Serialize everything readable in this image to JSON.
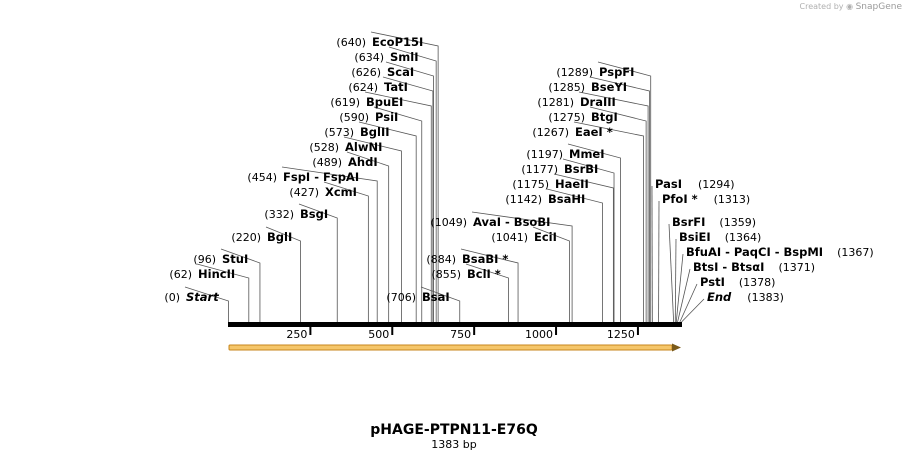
{
  "credit": {
    "prefix": "Created by",
    "brand": "SnapGene"
  },
  "plasmid": {
    "name": "pHAGE-PTPN11-E76Q",
    "length_text": "1383 bp",
    "length": 1383
  },
  "colors": {
    "feature_fill": "#f5c66a",
    "feature_stroke": "#c7861c",
    "backbone": "#000000",
    "arrow_head": "#7a5a1a"
  },
  "axis": {
    "ticks": [
      250,
      500,
      750,
      1000,
      1250
    ]
  },
  "sites": [
    {
      "name": "Start",
      "pos": 0,
      "pos_text": "(0)",
      "special": true
    },
    {
      "name": "HincII",
      "pos": 62,
      "pos_text": "(62)"
    },
    {
      "name": "StuI",
      "pos": 96,
      "pos_text": "(96)"
    },
    {
      "name": "BglI",
      "pos": 220,
      "pos_text": "(220)"
    },
    {
      "name": "BsgI",
      "pos": 332,
      "pos_text": "(332)"
    },
    {
      "name": "XcmI",
      "pos": 427,
      "pos_text": "(427)"
    },
    {
      "name": "FspI  -  FspAI",
      "pos": 454,
      "pos_text": "(454)"
    },
    {
      "name": "AhdI",
      "pos": 489,
      "pos_text": "(489)"
    },
    {
      "name": "AlwNI",
      "pos": 528,
      "pos_text": "(528)"
    },
    {
      "name": "BglII",
      "pos": 573,
      "pos_text": "(573)"
    },
    {
      "name": "PsiI",
      "pos": 590,
      "pos_text": "(590)"
    },
    {
      "name": "BpuEI",
      "pos": 619,
      "pos_text": "(619)"
    },
    {
      "name": "TatI",
      "pos": 624,
      "pos_text": "(624)"
    },
    {
      "name": "ScaI",
      "pos": 626,
      "pos_text": "(626)"
    },
    {
      "name": "SmlI",
      "pos": 634,
      "pos_text": "(634)"
    },
    {
      "name": "EcoP15I",
      "pos": 640,
      "pos_text": "(640)"
    },
    {
      "name": "BsaI",
      "pos": 706,
      "pos_text": "(706)"
    },
    {
      "name": "BclI *",
      "pos": 855,
      "pos_text": "(855)"
    },
    {
      "name": "BsaBI *",
      "pos": 884,
      "pos_text": "(884)"
    },
    {
      "name": "EciI",
      "pos": 1041,
      "pos_text": "(1041)"
    },
    {
      "name": "AvaI  -  BsoBI",
      "pos": 1049,
      "pos_text": "(1049)"
    },
    {
      "name": "BsaHI",
      "pos": 1142,
      "pos_text": "(1142)"
    },
    {
      "name": "HaeII",
      "pos": 1175,
      "pos_text": "(1175)"
    },
    {
      "name": "BsrBI",
      "pos": 1177,
      "pos_text": "(1177)"
    },
    {
      "name": "MmeI",
      "pos": 1197,
      "pos_text": "(1197)"
    },
    {
      "name": "EaeI *",
      "pos": 1267,
      "pos_text": "(1267)"
    },
    {
      "name": "BtgI",
      "pos": 1275,
      "pos_text": "(1275)"
    },
    {
      "name": "DraIII",
      "pos": 1281,
      "pos_text": "(1281)"
    },
    {
      "name": "BseYI",
      "pos": 1285,
      "pos_text": "(1285)"
    },
    {
      "name": "PspFI",
      "pos": 1289,
      "pos_text": "(1289)"
    },
    {
      "name": "PasI",
      "pos": 1294,
      "pos_text": "(1294)"
    },
    {
      "name": "PfoI *",
      "pos": 1313,
      "pos_text": "(1313)"
    },
    {
      "name": "BsrFI",
      "pos": 1359,
      "pos_text": "(1359)"
    },
    {
      "name": "BsiEI",
      "pos": 1364,
      "pos_text": "(1364)"
    },
    {
      "name": "BfuAI  -  PaqCI  -  BspMI",
      "pos": 1367,
      "pos_text": "(1367)"
    },
    {
      "name": "BtsI  -  BtsαI",
      "pos": 1371,
      "pos_text": "(1371)"
    },
    {
      "name": "PstI",
      "pos": 1378,
      "pos_text": "(1378)"
    },
    {
      "name": "End",
      "pos": 1383,
      "pos_text": "(1383)",
      "special": true
    }
  ]
}
